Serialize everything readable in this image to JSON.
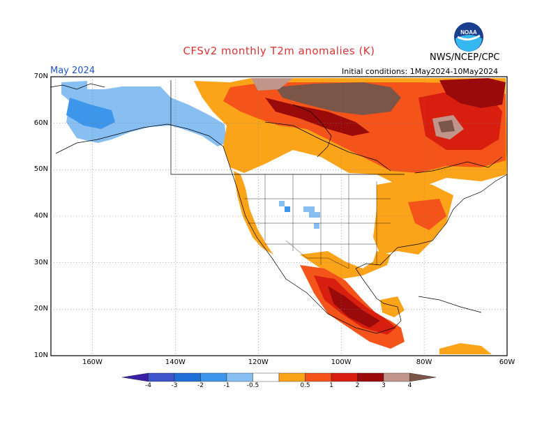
{
  "title": "CFSv2 monthly T2m anomalies (K)",
  "agency": "NWS/NCEP/CPC",
  "logo_text": "NOAA",
  "target_month": "May 2024",
  "initial_conditions": "Initial conditions: 1May2024-10May2024",
  "map": {
    "lat_range": [
      10,
      70
    ],
    "lon_range": [
      -170,
      -60
    ],
    "lat_ticks": [
      "70N",
      "60N",
      "50N",
      "40N",
      "30N",
      "20N",
      "10N"
    ],
    "lon_ticks": [
      "160W",
      "140W",
      "120W",
      "100W",
      "80W",
      "60W"
    ],
    "grid": "dotted"
  },
  "colorbar": {
    "labels": [
      "-4",
      "-3",
      "-2",
      "-1",
      "-0.5",
      "0.5",
      "1",
      "2",
      "3",
      "4"
    ],
    "colors": [
      "#3a1fa8",
      "#3f55cc",
      "#1f6fd6",
      "#3d96ea",
      "#88bff2",
      "#ffffff",
      "#fba41a",
      "#f4541a",
      "#d81f0f",
      "#9a0a0a",
      "#c2958a",
      "#7a5548"
    ]
  },
  "anomaly_regions": [
    {
      "name": "alaska",
      "level": "-1",
      "color": "#88bff2"
    },
    {
      "name": "alaska-core",
      "level": "-2",
      "color": "#3d96ea"
    },
    {
      "name": "canada-east",
      "level": "2",
      "color": "#f4541a"
    },
    {
      "name": "hudson-bay",
      "level": "4",
      "color": "#7a5548"
    },
    {
      "name": "mexico-south",
      "level": "3",
      "color": "#d81f0f"
    },
    {
      "name": "us-east",
      "level": "1",
      "color": "#fba41a"
    }
  ]
}
